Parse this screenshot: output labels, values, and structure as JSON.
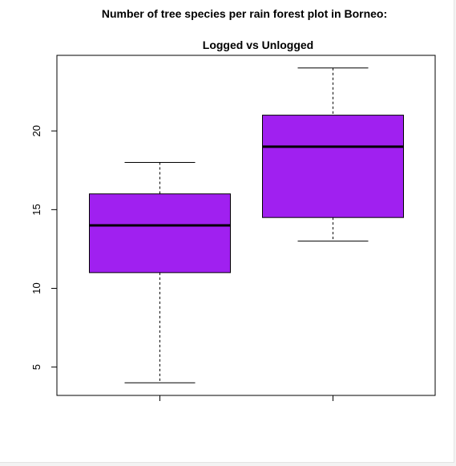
{
  "chart_data": {
    "type": "boxplot",
    "title_line1": "Number of tree species per rain forest plot in Borneo:",
    "title_line2": "Logged vs Unlogged",
    "xlabel": "",
    "ylabel": "",
    "y_ticks": [
      5,
      10,
      15,
      20
    ],
    "y_tick_labels": [
      "5",
      "10",
      "15",
      "20"
    ],
    "ylim": [
      3.2,
      24.8
    ],
    "grid": false,
    "box_color": "#a020f0",
    "boxes": [
      {
        "whisker_low": 4,
        "q1": 11,
        "median": 14,
        "q3": 16,
        "whisker_high": 18
      },
      {
        "whisker_low": 13,
        "q1": 14.5,
        "median": 19,
        "q3": 21,
        "whisker_high": 24
      }
    ]
  }
}
